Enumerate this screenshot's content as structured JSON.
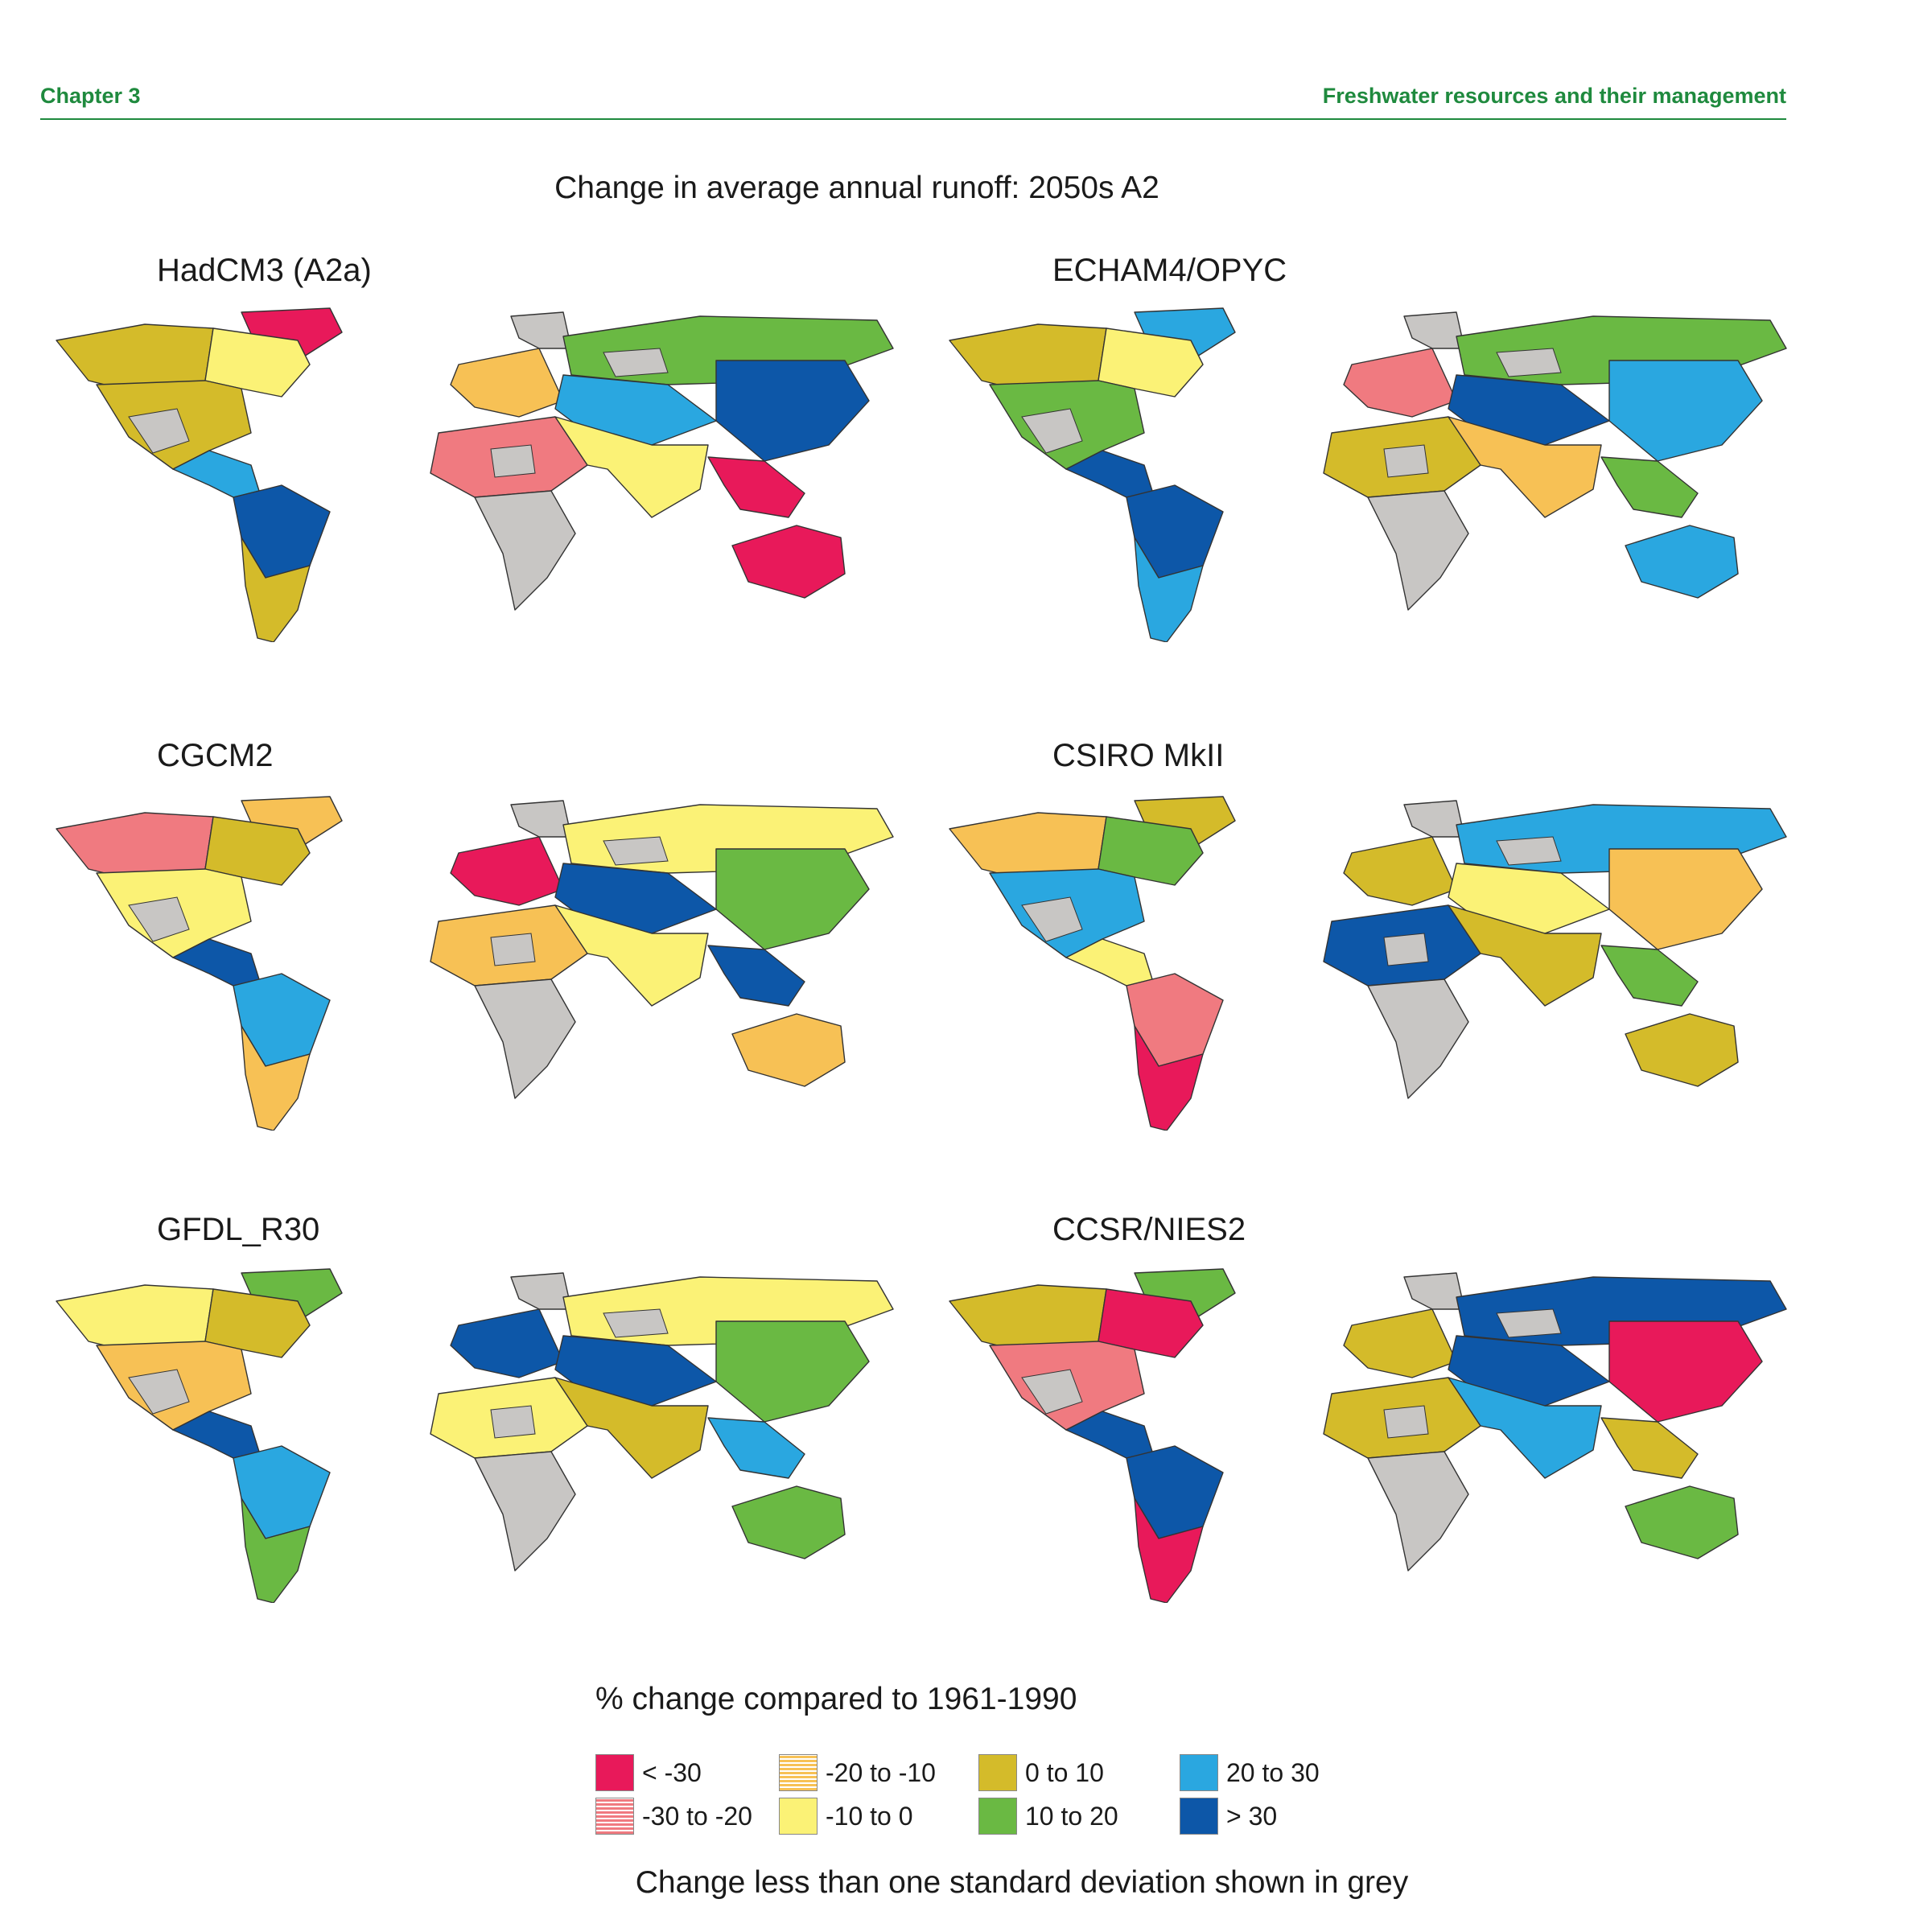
{
  "header": {
    "chapter": "Chapter 3",
    "section": "Freshwater resources and their management",
    "accent_color": "#1f8a3e"
  },
  "title": "Change in average annual runoff: 2050s  A2",
  "panels": [
    {
      "model": "HadCM3 (A2a)",
      "scheme": [
        0,
        4,
        3,
        4,
        6,
        7,
        4,
        2,
        0,
        5,
        6,
        7,
        1,
        3,
        2,
        0
      ]
    },
    {
      "model": "ECHAM4/OPYC",
      "scheme": [
        6,
        4,
        3,
        5,
        7,
        7,
        6,
        1,
        0,
        5,
        7,
        6,
        4,
        2,
        0,
        5
      ]
    },
    {
      "model": "CGCM2",
      "scheme": [
        2,
        1,
        4,
        3,
        7,
        6,
        2,
        0,
        4,
        3,
        7,
        5,
        2,
        3,
        4,
        7
      ]
    },
    {
      "model": "CSIRO MkII",
      "scheme": [
        4,
        2,
        5,
        6,
        3,
        1,
        0,
        4,
        5,
        6,
        3,
        2,
        7,
        4,
        0,
        5
      ]
    },
    {
      "model": "GFDL_R30",
      "scheme": [
        5,
        3,
        4,
        2,
        7,
        6,
        5,
        7,
        4,
        3,
        7,
        5,
        3,
        4,
        2,
        6
      ]
    },
    {
      "model": "CCSR/NIES2",
      "scheme": [
        5,
        4,
        0,
        1,
        7,
        7,
        0,
        4,
        0,
        7,
        7,
        0,
        4,
        6,
        7,
        4
      ]
    }
  ],
  "legend": {
    "title": "% change compared to 1961-1990",
    "items": [
      {
        "label": "< -30",
        "color": "#e8195a",
        "hatch": false
      },
      {
        "label": "-30 to -20",
        "color": "#f07a80",
        "hatch": true
      },
      {
        "label": "-20 to -10",
        "color": "#f7c155",
        "hatch": true
      },
      {
        "label": "-10 to 0",
        "color": "#fbf276",
        "hatch": false
      },
      {
        "label": "0 to 10",
        "color": "#d4bb2a",
        "hatch": false
      },
      {
        "label": "10 to 20",
        "color": "#6ab943",
        "hatch": false
      },
      {
        "label": "20 to 30",
        "color": "#2aa7e0",
        "hatch": false
      },
      {
        "label": "> 30",
        "color": "#0d57a8",
        "hatch": false
      }
    ],
    "grey_color": "#c8c6c4"
  },
  "footnote": "Change less than one standard deviation shown in grey"
}
